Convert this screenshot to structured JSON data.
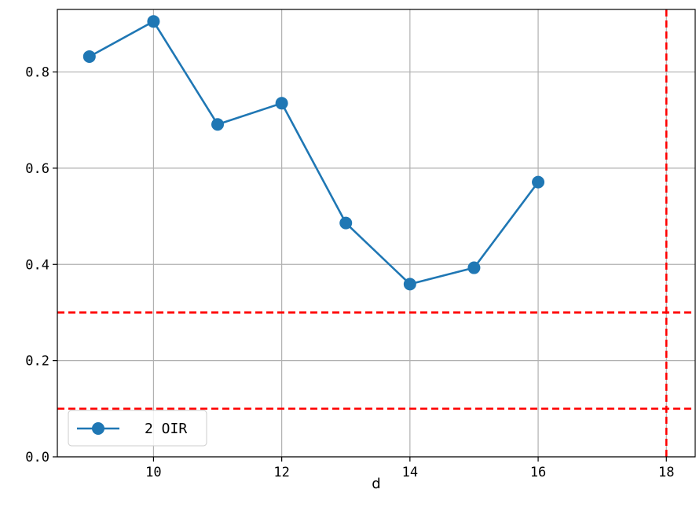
{
  "chart_data": {
    "type": "line",
    "title": "",
    "xlabel": "d",
    "ylabel": "",
    "xlim": [
      8.5,
      18.45
    ],
    "ylim": [
      0.0,
      0.93
    ],
    "xticks": [
      10,
      12,
      14,
      16,
      18
    ],
    "yticks": [
      0.0,
      0.2,
      0.4,
      0.6,
      0.8
    ],
    "xtick_labels": [
      "10",
      "12",
      "14",
      "16",
      "18"
    ],
    "ytick_labels": [
      "0.0",
      "0.2",
      "0.4",
      "0.6",
      "0.8"
    ],
    "grid": true,
    "legend_position": "lower-left",
    "series": [
      {
        "name": "2 OIR",
        "color": "#1f77b4",
        "marker": "circle",
        "x": [
          9,
          10,
          11,
          12,
          13,
          14,
          15,
          16
        ],
        "y": [
          0.832,
          0.905,
          0.691,
          0.735,
          0.486,
          0.359,
          0.393,
          0.571
        ]
      }
    ],
    "reference_lines": [
      {
        "orientation": "horizontal",
        "value": 0.3,
        "color": "#ff0000",
        "style": "dashed"
      },
      {
        "orientation": "horizontal",
        "value": 0.1,
        "color": "#ff0000",
        "style": "dashed"
      },
      {
        "orientation": "vertical",
        "value": 18,
        "color": "#ff0000",
        "style": "dashed"
      }
    ]
  }
}
